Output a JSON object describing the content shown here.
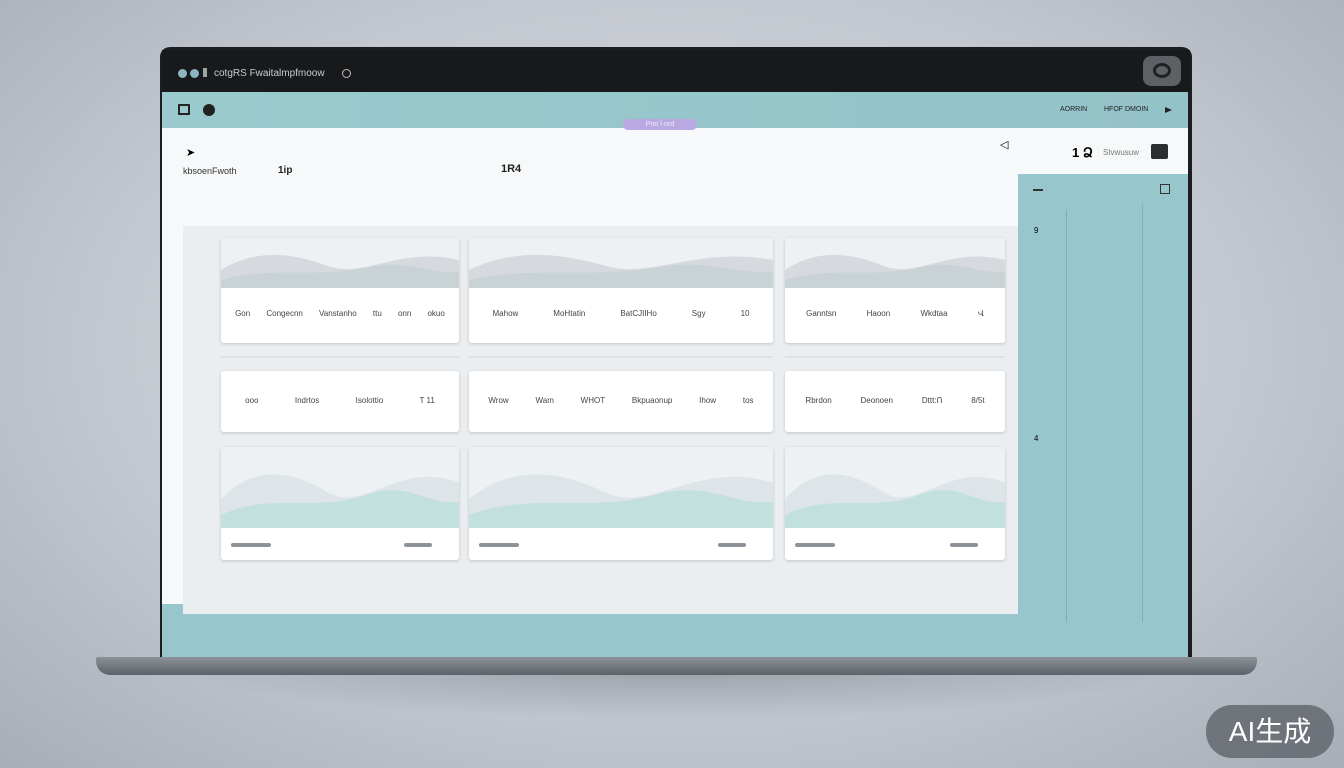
{
  "window": {
    "title": "cotgRS Fwaitalmpfmoow"
  },
  "header": {
    "right_links": [
      "AORRIN",
      "HFOF DMOIN"
    ],
    "pill": "Pno l·ord"
  },
  "toolbar": {
    "left_label": "kbsoenFwoth",
    "label_2": "1ip",
    "center_label": "1R4",
    "count": "1 Ձ",
    "status": "Stvwusuw"
  },
  "side_panel": {
    "label_1": "9",
    "label_2": "4"
  },
  "cards_row1": [
    {
      "items": [
        "Gon",
        "Congecnn",
        "Vanstanho",
        "ttu",
        "onn",
        "okuo"
      ]
    },
    {
      "items": [
        "Mahow",
        "MoHtatin",
        "BatCJIIHo",
        "Sgy",
        "10"
      ]
    },
    {
      "items": [
        "Ganntsn",
        "Haoon",
        "Wkdtaa",
        "Վ"
      ]
    }
  ],
  "cards_row2": [
    {
      "items": [
        "ooo",
        "Indrtos",
        "Isolottio",
        "T 11"
      ]
    },
    {
      "items": [
        "Wrow",
        "Wam",
        "WHOT",
        "Bkpuaonup",
        "Ihow",
        "tos"
      ]
    },
    {
      "items": [
        "Rbrdon",
        "Deonoen",
        "Dttt:Ո",
        "8/5t"
      ]
    }
  ],
  "watermark": "AI生成",
  "colors": {
    "teal": "#97c6cc",
    "accent_pill": "#b9a9e2",
    "titlebar": "#18191b"
  }
}
